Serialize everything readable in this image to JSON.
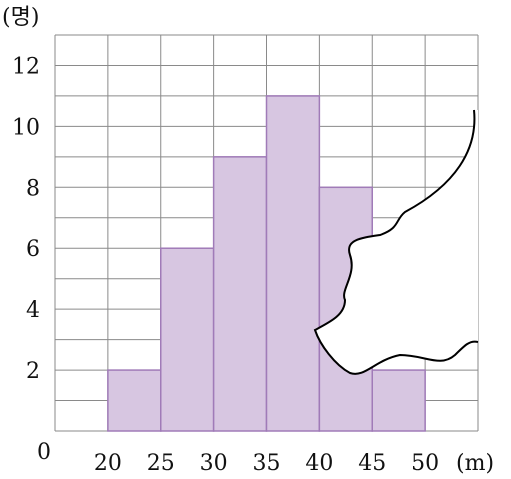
{
  "chart_data": {
    "type": "bar",
    "subtype": "histogram",
    "y_unit_label": "(명)",
    "x_unit_label": "(m)",
    "origin_label": "0",
    "x_edges": [
      20,
      25,
      30,
      35,
      40,
      45,
      50
    ],
    "x_tick_labels": [
      "20",
      "25",
      "30",
      "35",
      "40",
      "45",
      "50"
    ],
    "y_tick_labels": [
      "2",
      "4",
      "6",
      "8",
      "10",
      "12"
    ],
    "bins": [
      {
        "from": 20,
        "to": 25,
        "value": 2
      },
      {
        "from": 25,
        "to": 30,
        "value": 6
      },
      {
        "from": 30,
        "to": 35,
        "value": 9
      },
      {
        "from": 35,
        "to": 40,
        "value": 11
      },
      {
        "from": 40,
        "to": 45,
        "value": 8
      },
      {
        "from": 45,
        "to": 50,
        "value": 2
      }
    ],
    "xlim": [
      15,
      55
    ],
    "ylim": [
      0,
      13
    ],
    "grid": true,
    "colors": {
      "bar_fill": "#d7c6e1",
      "bar_edge": "#a07bb8",
      "grid": "#8a8a8a"
    },
    "annotations": [
      "torn-paper curve covering the upper-right area"
    ]
  }
}
